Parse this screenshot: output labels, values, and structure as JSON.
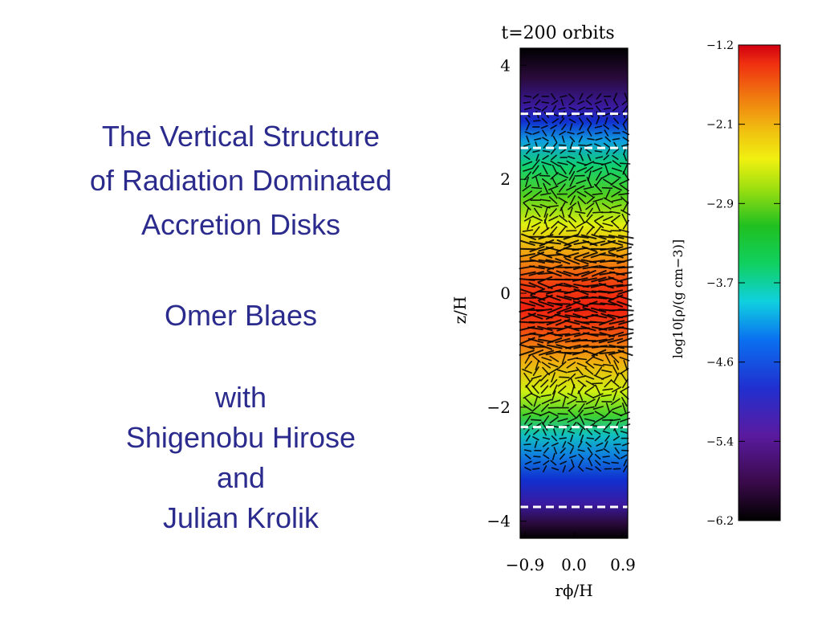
{
  "slide": {
    "title_lines": [
      "The Vertical Structure",
      "of Radiation Dominated",
      "Accretion Disks"
    ],
    "author": "Omer Blaes",
    "collaborators": [
      "with",
      "Shigenobu Hirose",
      "and",
      "Julian Krolik"
    ]
  },
  "figure": {
    "panel_title": "t=200 orbits",
    "y_axis_label": "z/H",
    "x_axis_label": "rϕ/H",
    "y_ticks": [
      "4",
      "2",
      "0",
      "−2",
      "−4"
    ],
    "x_ticks": [
      "−0.9",
      "0.0",
      "0.9"
    ],
    "colorbar_label": "log10[ρ/(g cm−3)]",
    "colorbar_ticks": [
      "−1.2",
      "−2.1",
      "−2.9",
      "−3.7",
      "−4.6",
      "−5.4",
      "−6.2"
    ],
    "dashed_line_z": [
      3.15,
      2.55,
      -2.35,
      -3.75
    ],
    "colormap": [
      "#000000",
      "#3a0a4a",
      "#5a1aa0",
      "#2030d0",
      "#0a70f0",
      "#10d0e0",
      "#10d060",
      "#20c020",
      "#a0e010",
      "#f0f010",
      "#f0c010",
      "#f07010",
      "#f03010",
      "#d00010"
    ]
  }
}
